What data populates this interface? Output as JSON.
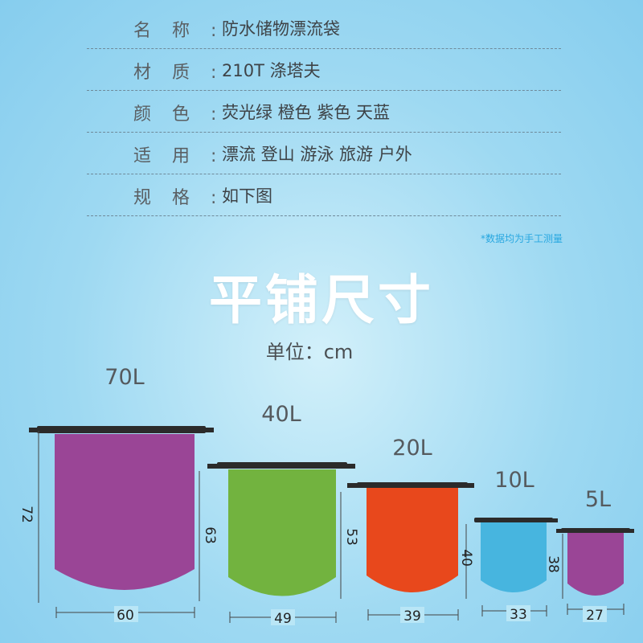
{
  "specs": [
    {
      "label": "名称:",
      "value": "防水储物漂流袋"
    },
    {
      "label": "材质:",
      "value": "210T 涤塔夫"
    },
    {
      "label": "颜色:",
      "value": "荧光绿 橙色 紫色 天蓝"
    },
    {
      "label": "适用:",
      "value": "漂流 登山 游泳 旅游 户外"
    },
    {
      "label": "规格:",
      "value": "如下图"
    }
  ],
  "note": "*数据均为手工测量",
  "section_title": "平铺尺寸",
  "unit_label": "单位：cm",
  "bags": [
    {
      "capacity": "70L",
      "height": "72",
      "width": "60",
      "color": "#9a4596"
    },
    {
      "capacity": "40L",
      "height": "63",
      "width": "49",
      "color": "#72b33f"
    },
    {
      "capacity": "20L",
      "height": "53",
      "width": "39",
      "color": "#e8481c"
    },
    {
      "capacity": "10L",
      "height": "40",
      "width": "33",
      "color": "#47b5df"
    },
    {
      "capacity": "5L",
      "height": "38",
      "width": "27",
      "color": "#9a4596"
    }
  ]
}
